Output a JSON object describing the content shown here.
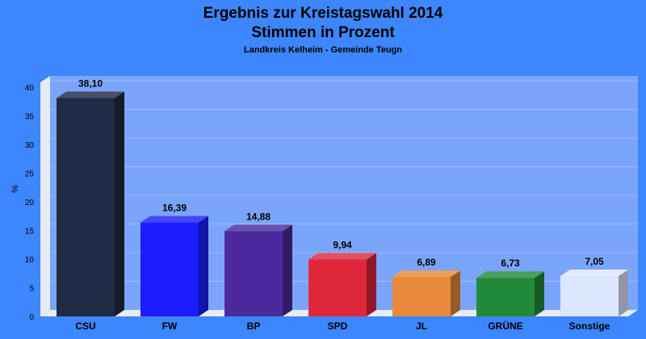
{
  "chart_data": {
    "type": "bar",
    "title": "Ergebnis zur Kreistagswahl 2014",
    "title_line2": "Stimmen in Prozent",
    "subtitle": "Landkreis Kelheim - Gemeinde Teugn",
    "ylabel": "%",
    "xlabel": "",
    "ylim": [
      0,
      40
    ],
    "yticks": [
      "0",
      "5",
      "10",
      "15",
      "20",
      "25",
      "30",
      "35",
      "40"
    ],
    "categories": [
      "CSU",
      "FW",
      "BP",
      "SPD",
      "JL",
      "GRÜNE",
      "Sonstige"
    ],
    "values": [
      38.1,
      16.39,
      14.88,
      9.94,
      6.89,
      6.73,
      7.05
    ],
    "value_labels": [
      "38,10",
      "16,39",
      "14,88",
      "9,94",
      "6,89",
      "6,73",
      "7,05"
    ],
    "colors": [
      "#1f2a44",
      "#1c1cff",
      "#4c2a9e",
      "#e0283d",
      "#e88a3a",
      "#228b3a",
      "#dde6ff"
    ],
    "grid": true,
    "legend": "none"
  }
}
